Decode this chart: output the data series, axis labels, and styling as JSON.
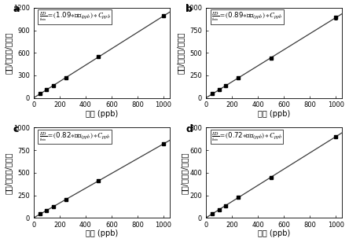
{
  "subplots": [
    {
      "label": "a",
      "slope": 1.09,
      "slope_str": "1.09",
      "x_data": [
        50,
        100,
        150,
        250,
        500,
        1000
      ],
      "y_data": [
        54.5,
        109,
        163.5,
        272.5,
        545,
        1090
      ],
      "y_err": [
        8,
        10,
        12,
        15,
        20,
        22
      ],
      "ylim": [
        0,
        1200
      ],
      "yticks": [
        0,
        300,
        600,
        900,
        1200
      ]
    },
    {
      "label": "b",
      "slope": 0.89,
      "slope_str": "0.89",
      "x_data": [
        50,
        100,
        150,
        250,
        500,
        1000
      ],
      "y_data": [
        44.5,
        89,
        133.5,
        222.5,
        445,
        890
      ],
      "y_err": [
        6,
        8,
        10,
        12,
        15,
        18
      ],
      "ylim": [
        0,
        1000
      ],
      "yticks": [
        0,
        250,
        500,
        750,
        1000
      ]
    },
    {
      "label": "c",
      "slope": 0.82,
      "slope_str": "0.82",
      "x_data": [
        50,
        100,
        150,
        250,
        500,
        1000
      ],
      "y_data": [
        41,
        82,
        123,
        205,
        410,
        820
      ],
      "y_err": [
        6,
        8,
        9,
        11,
        14,
        16
      ],
      "ylim": [
        0,
        1000
      ],
      "yticks": [
        0,
        250,
        500,
        750,
        1000
      ]
    },
    {
      "label": "d",
      "slope": 0.72,
      "slope_str": "0.72",
      "x_data": [
        50,
        100,
        150,
        250,
        500,
        1000
      ],
      "y_data": [
        36,
        72,
        108,
        180,
        360,
        720
      ],
      "y_err": [
        5,
        7,
        8,
        10,
        12,
        14
      ],
      "ylim": [
        0,
        800
      ],
      "yticks": [
        0,
        200,
        400,
        600,
        800
      ]
    }
  ],
  "xlim": [
    0,
    1050
  ],
  "xticks": [
    0,
    200,
    400,
    600,
    800,
    1000
  ],
  "xlabel": "浓度 (ppb)",
  "ylabel": "信号/时间（/分钟）",
  "line_color": "#3a3a3a",
  "marker_color": "black",
  "bg_color": "white",
  "label_fontsize": 7,
  "tick_fontsize": 6,
  "eq_fontsize": 6.2,
  "axis_label_fontsize": 7
}
